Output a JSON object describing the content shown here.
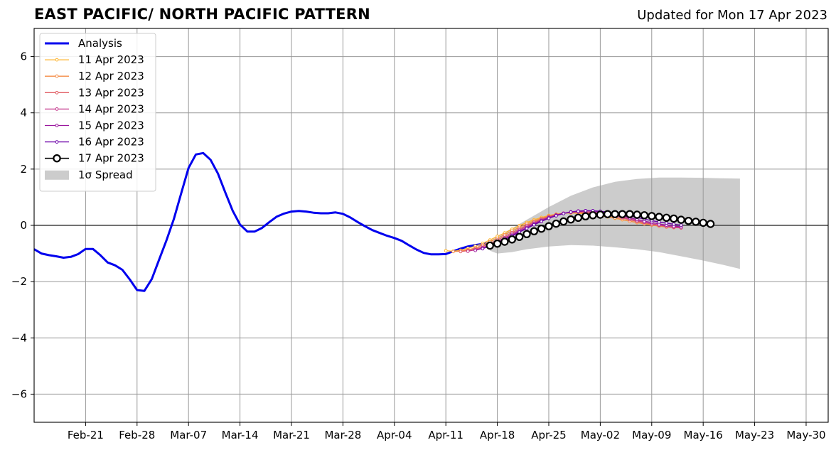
{
  "header": {
    "title": "EAST PACIFIC/ NORTH PACIFIC PATTERN",
    "updated": "Updated for Mon 17 Apr 2023"
  },
  "colors": {
    "analysis": "#0000ee",
    "spread": "#cccccc",
    "grid": "#999999",
    "zero_line": "#444444"
  },
  "chart_data": {
    "type": "line",
    "title": "EAST PACIFIC/ NORTH PACIFIC PATTERN",
    "subtitle": "Updated for Mon 17 Apr 2023",
    "xlabel": "",
    "ylabel": "",
    "xlim": [
      "2023-02-14",
      "2023-06-02"
    ],
    "ylim": [
      -7,
      7
    ],
    "grid": true,
    "legend_position": "top-left",
    "x_ticks": [
      "2023-02-21",
      "2023-02-28",
      "2023-03-07",
      "2023-03-14",
      "2023-03-21",
      "2023-03-28",
      "2023-04-04",
      "2023-04-11",
      "2023-04-18",
      "2023-04-25",
      "2023-05-02",
      "2023-05-09",
      "2023-05-16",
      "2023-05-23",
      "2023-05-30"
    ],
    "x_tick_labels": [
      "Feb-21",
      "Feb-28",
      "Mar-07",
      "Mar-14",
      "Mar-21",
      "Mar-28",
      "Apr-04",
      "Apr-11",
      "Apr-18",
      "Apr-25",
      "May-02",
      "May-09",
      "May-16",
      "May-23",
      "May-30"
    ],
    "y_ticks": [
      -6,
      -4,
      -2,
      0,
      2,
      4,
      6
    ],
    "y_tick_labels": [
      "−6",
      "−4",
      "−2",
      "0",
      "2",
      "4",
      "6"
    ],
    "analysis": {
      "name": "Analysis",
      "color": "#0000ee",
      "x": [
        "2023-02-14",
        "2023-02-15",
        "2023-02-16",
        "2023-02-17",
        "2023-02-18",
        "2023-02-19",
        "2023-02-20",
        "2023-02-21",
        "2023-02-22",
        "2023-02-23",
        "2023-02-24",
        "2023-02-25",
        "2023-02-26",
        "2023-02-27",
        "2023-02-28",
        "2023-03-01",
        "2023-03-02",
        "2023-03-03",
        "2023-03-04",
        "2023-03-05",
        "2023-03-06",
        "2023-03-07",
        "2023-03-08",
        "2023-03-09",
        "2023-03-10",
        "2023-03-11",
        "2023-03-12",
        "2023-03-13",
        "2023-03-14",
        "2023-03-15",
        "2023-03-16",
        "2023-03-17",
        "2023-03-18",
        "2023-03-19",
        "2023-03-20",
        "2023-03-21",
        "2023-03-22",
        "2023-03-23",
        "2023-03-24",
        "2023-03-25",
        "2023-03-26",
        "2023-03-27",
        "2023-03-28",
        "2023-03-29",
        "2023-03-30",
        "2023-03-31",
        "2023-04-01",
        "2023-04-02",
        "2023-04-03",
        "2023-04-04",
        "2023-04-05",
        "2023-04-06",
        "2023-04-07",
        "2023-04-08",
        "2023-04-09",
        "2023-04-10",
        "2023-04-11",
        "2023-04-12",
        "2023-04-13",
        "2023-04-14",
        "2023-04-15",
        "2023-04-16",
        "2023-04-17"
      ],
      "y": [
        -0.85,
        -1.0,
        -1.06,
        -1.1,
        -1.15,
        -1.12,
        -1.02,
        -0.84,
        -0.84,
        -1.06,
        -1.32,
        -1.42,
        -1.58,
        -1.92,
        -2.3,
        -2.33,
        -1.91,
        -1.22,
        -0.53,
        0.22,
        1.14,
        2.04,
        2.52,
        2.57,
        2.33,
        1.84,
        1.17,
        0.52,
        0.03,
        -0.22,
        -0.22,
        -0.09,
        0.12,
        0.31,
        0.42,
        0.49,
        0.51,
        0.49,
        0.45,
        0.43,
        0.43,
        0.46,
        0.41,
        0.28,
        0.12,
        -0.03,
        -0.17,
        -0.27,
        -0.37,
        -0.45,
        -0.55,
        -0.71,
        -0.86,
        -0.98,
        -1.03,
        -1.03,
        -1.02,
        -0.92,
        -0.83,
        -0.75,
        -0.7,
        -0.66,
        -0.64
      ]
    },
    "series": [
      {
        "name": "11 Apr 2023",
        "color": "#fdb42f",
        "start": "2023-04-11",
        "values": [
          -0.9,
          -0.92,
          -0.89,
          -0.82,
          -0.74,
          -0.64,
          -0.52,
          -0.39,
          -0.27,
          -0.14,
          -0.01,
          0.1,
          0.2,
          0.28,
          0.35,
          0.4,
          0.43,
          0.44,
          0.43,
          0.41,
          0.38,
          0.34,
          0.3,
          0.25,
          0.2,
          0.15,
          0.1,
          0.06,
          0.02,
          -0.02,
          -0.05,
          -0.07,
          -0.08
        ]
      },
      {
        "name": "12 Apr 2023",
        "color": "#f58c45",
        "start": "2023-04-12",
        "values": [
          -0.93,
          -0.92,
          -0.87,
          -0.8,
          -0.7,
          -0.58,
          -0.46,
          -0.33,
          -0.2,
          -0.07,
          0.05,
          0.16,
          0.25,
          0.33,
          0.39,
          0.43,
          0.45,
          0.45,
          0.43,
          0.4,
          0.36,
          0.31,
          0.26,
          0.21,
          0.15,
          0.1,
          0.05,
          0.01,
          -0.03,
          -0.06,
          -0.08,
          -0.09
        ]
      },
      {
        "name": "13 Apr 2023",
        "color": "#e15e64",
        "start": "2023-04-13",
        "values": [
          -0.93,
          -0.9,
          -0.84,
          -0.75,
          -0.64,
          -0.52,
          -0.39,
          -0.26,
          -0.13,
          0.0,
          0.12,
          0.22,
          0.31,
          0.38,
          0.43,
          0.46,
          0.47,
          0.46,
          0.44,
          0.41,
          0.36,
          0.31,
          0.26,
          0.2,
          0.14,
          0.09,
          0.04,
          0.0,
          -0.04,
          -0.07,
          -0.09
        ]
      },
      {
        "name": "14 Apr 2023",
        "color": "#c3368b",
        "start": "2023-04-14",
        "values": [
          -0.92,
          -0.87,
          -0.79,
          -0.69,
          -0.57,
          -0.44,
          -0.31,
          -0.17,
          -0.04,
          0.08,
          0.19,
          0.29,
          0.37,
          0.43,
          0.47,
          0.49,
          0.49,
          0.47,
          0.44,
          0.4,
          0.35,
          0.29,
          0.23,
          0.17,
          0.11,
          0.06,
          0.01,
          -0.03,
          -0.06,
          -0.08
        ]
      },
      {
        "name": "15 Apr 2023",
        "color": "#9b179e",
        "start": "2023-04-15",
        "values": [
          -0.89,
          -0.82,
          -0.72,
          -0.61,
          -0.48,
          -0.35,
          -0.21,
          -0.08,
          0.05,
          0.17,
          0.27,
          0.36,
          0.43,
          0.48,
          0.51,
          0.52,
          0.51,
          0.48,
          0.44,
          0.39,
          0.33,
          0.27,
          0.21,
          0.15,
          0.1,
          0.05,
          0.01,
          -0.03,
          -0.05
        ]
      },
      {
        "name": "16 Apr 2023",
        "color": "#6a00a8",
        "start": "2023-04-16",
        "values": [
          -0.83,
          -0.74,
          -0.63,
          -0.51,
          -0.38,
          -0.24,
          -0.11,
          0.02,
          0.14,
          0.25,
          0.34,
          0.42,
          0.47,
          0.5,
          0.52,
          0.52,
          0.5,
          0.47,
          0.43,
          0.38,
          0.33,
          0.28,
          0.22,
          0.17,
          0.12,
          0.08,
          0.04,
          0.01
        ]
      },
      {
        "name": "17 Apr 2023",
        "color": "#000000",
        "start": "2023-04-17",
        "values": [
          -0.72,
          -0.65,
          -0.58,
          -0.5,
          -0.41,
          -0.31,
          -0.21,
          -0.12,
          -0.03,
          0.06,
          0.14,
          0.21,
          0.27,
          0.32,
          0.36,
          0.38,
          0.4,
          0.4,
          0.4,
          0.4,
          0.38,
          0.36,
          0.33,
          0.3,
          0.27,
          0.24,
          0.2,
          0.16,
          0.13,
          0.09,
          0.05
        ]
      }
    ],
    "spread": {
      "name": "1σ Spread",
      "color": "#cccccc",
      "x": [
        "2023-04-17",
        "2023-04-18",
        "2023-04-20",
        "2023-04-22",
        "2023-04-25",
        "2023-04-28",
        "2023-05-01",
        "2023-05-04",
        "2023-05-07",
        "2023-05-10",
        "2023-05-13",
        "2023-05-16",
        "2023-05-19",
        "2023-05-21"
      ],
      "upper": [
        -0.55,
        -0.4,
        -0.1,
        0.2,
        0.65,
        1.05,
        1.35,
        1.55,
        1.65,
        1.7,
        1.7,
        1.69,
        1.67,
        1.66
      ],
      "lower": [
        -0.9,
        -1.0,
        -0.95,
        -0.85,
        -0.75,
        -0.7,
        -0.72,
        -0.78,
        -0.85,
        -0.95,
        -1.1,
        -1.25,
        -1.42,
        -1.55
      ]
    }
  }
}
